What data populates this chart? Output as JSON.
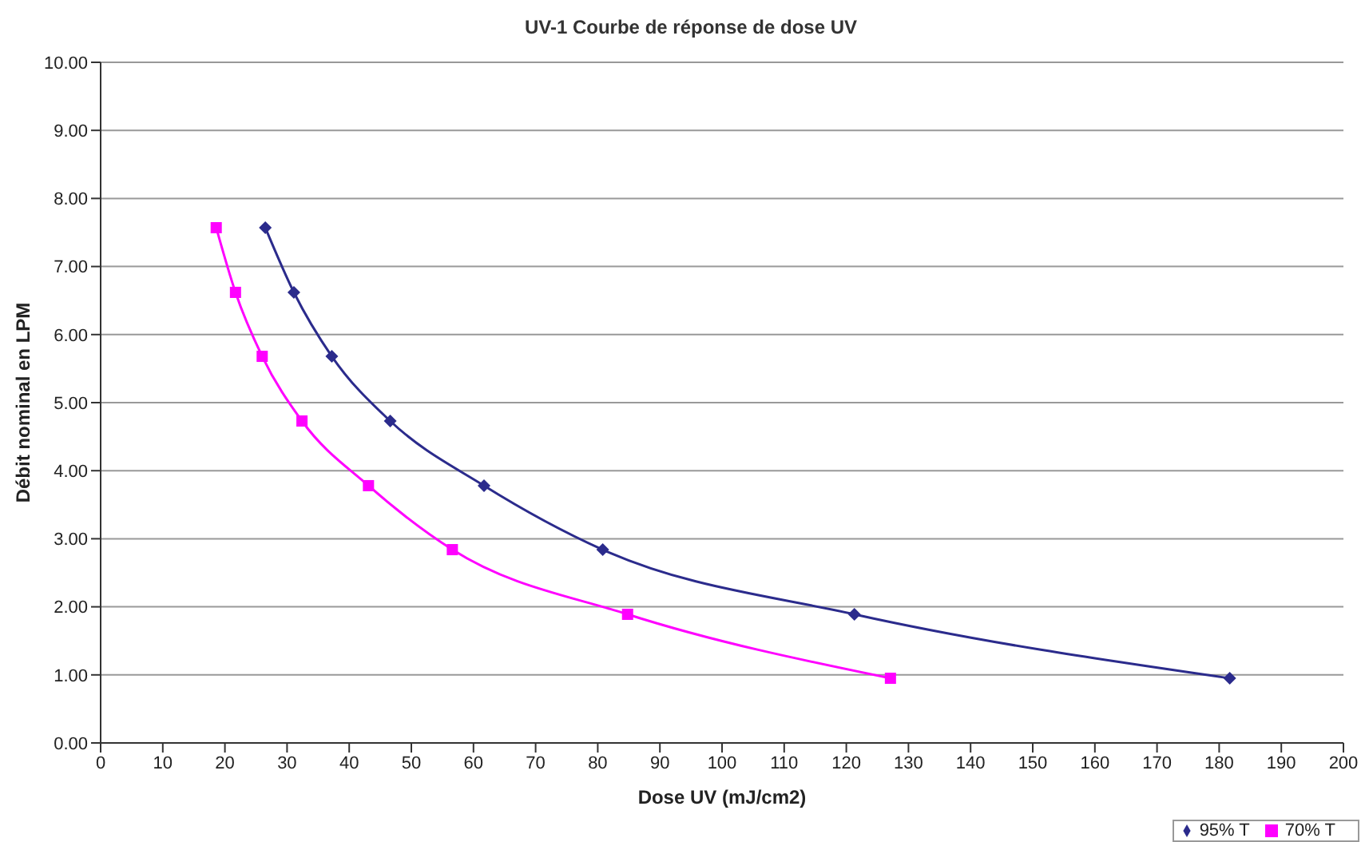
{
  "chart_data": {
    "type": "line",
    "title": "UV-1 Courbe de réponse de dose UV",
    "xlabel": "Dose UV (mJ/cm2)",
    "ylabel": "Débit nominal en LPM",
    "xlim": [
      0,
      200
    ],
    "xticks": [
      0,
      10,
      20,
      30,
      40,
      50,
      60,
      70,
      80,
      90,
      100,
      110,
      120,
      130,
      140,
      150,
      160,
      170,
      180,
      190,
      200
    ],
    "ylim": [
      0,
      10
    ],
    "yticks": [
      {
        "value": 0,
        "label": "0.00"
      },
      {
        "value": 1,
        "label": "1.00"
      },
      {
        "value": 2,
        "label": "2.00"
      },
      {
        "value": 3,
        "label": "3.00"
      },
      {
        "value": 4,
        "label": "4.00"
      },
      {
        "value": 5,
        "label": "5.00"
      },
      {
        "value": 6,
        "label": "6.00"
      },
      {
        "value": 7,
        "label": "7.00"
      },
      {
        "value": 8,
        "label": "8.00"
      },
      {
        "value": 9,
        "label": "9.00"
      },
      {
        "value": 10,
        "label": "10.00"
      }
    ],
    "grid": "y",
    "legend": "bottom right",
    "line_style": "solid",
    "series": [
      {
        "name": "95% T",
        "color": "#2b2b8c",
        "marker": "diamond",
        "x": [
          26.5,
          31.1,
          37.2,
          46.6,
          61.7,
          80.8,
          121.3,
          181.7
        ],
        "values": [
          7.57,
          6.62,
          5.68,
          4.73,
          3.78,
          2.84,
          1.89,
          0.95
        ]
      },
      {
        "name": "70% T",
        "color": "#ff00ff",
        "marker": "square",
        "x": [
          18.6,
          21.7,
          26.0,
          32.4,
          43.1,
          56.6,
          84.8,
          127.1
        ],
        "values": [
          7.57,
          6.62,
          5.68,
          4.73,
          3.78,
          2.84,
          1.89,
          0.95
        ]
      }
    ]
  }
}
